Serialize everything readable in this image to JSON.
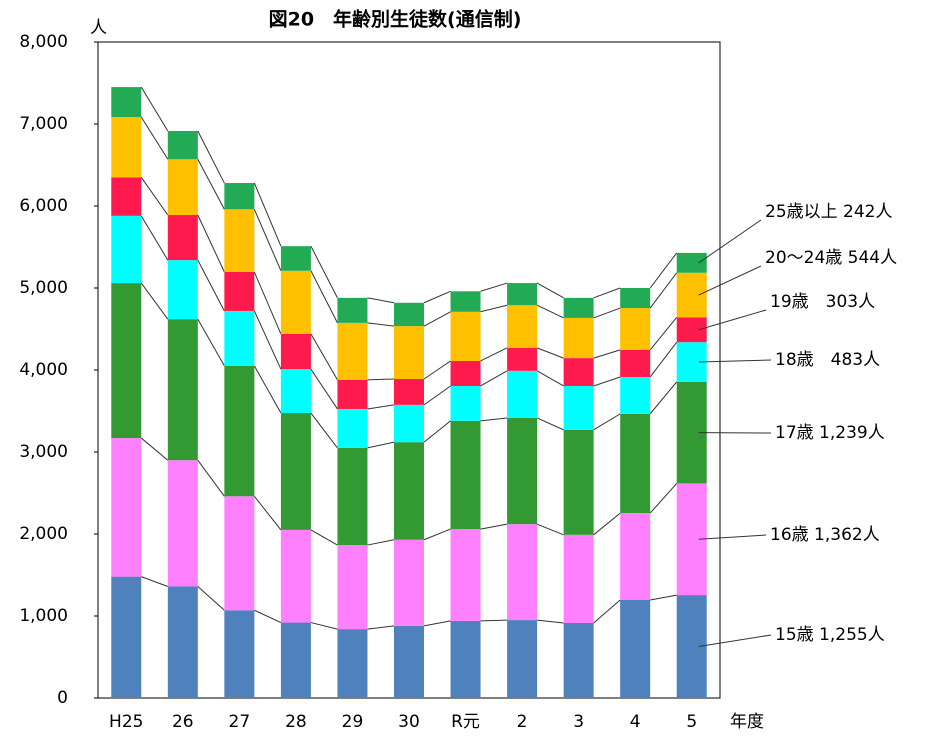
{
  "chart_data": {
    "type": "stacked_bar",
    "title": "図20　年齢別生徒数(通信制)",
    "y_unit": "人",
    "x_label": "年度",
    "categories": [
      "H25",
      "26",
      "27",
      "28",
      "29",
      "30",
      "R元",
      "2",
      "3",
      "4",
      "5"
    ],
    "series": [
      {
        "name": "15歳",
        "color": "#4f81bd",
        "values": [
          1480,
          1360,
          1070,
          920,
          840,
          880,
          940,
          950,
          915,
          1195,
          1255
        ]
      },
      {
        "name": "16歳",
        "color": "#ff80ff",
        "values": [
          1690,
          1540,
          1390,
          1130,
          1025,
          1050,
          1120,
          1170,
          1075,
          1060,
          1362
        ]
      },
      {
        "name": "17歳",
        "color": "#339933",
        "values": [
          1890,
          1720,
          1590,
          1425,
          1185,
          1190,
          1320,
          1295,
          1280,
          1210,
          1239
        ]
      },
      {
        "name": "18歳",
        "color": "#00ffff",
        "values": [
          820,
          720,
          670,
          535,
          475,
          455,
          425,
          575,
          535,
          450,
          483
        ]
      },
      {
        "name": "19歳",
        "color": "#ff1a4d",
        "values": [
          470,
          550,
          475,
          430,
          355,
          315,
          305,
          280,
          340,
          330,
          303
        ]
      },
      {
        "name": "20～24歳",
        "color": "#ffc000",
        "values": [
          735,
          680,
          765,
          770,
          695,
          645,
          600,
          520,
          490,
          510,
          544
        ]
      },
      {
        "name": "25歳以上",
        "color": "#22aa55",
        "values": [
          365,
          345,
          320,
          300,
          305,
          285,
          250,
          270,
          245,
          245,
          242
        ]
      }
    ],
    "annotations": [
      "15歳 1,255人",
      "16歳 1,362人",
      "17歳 1,239人",
      "18歳　483人",
      "19歳　303人",
      "20～24歳 544人",
      "25歳以上 242人"
    ],
    "ylim": [
      0,
      8000
    ],
    "yticks": [
      0,
      {
        "value": 1000,
        "label": "1,000"
      },
      {
        "value": 2000,
        "label": "2,000"
      },
      {
        "value": 3000,
        "label": "3,000"
      },
      {
        "value": 4000,
        "label": "4,000"
      },
      {
        "value": 5000,
        "label": "5,000"
      },
      {
        "value": 6000,
        "label": "6,000"
      },
      {
        "value": 7000,
        "label": "7,000"
      },
      {
        "value": 8000,
        "label": "8,000"
      }
    ]
  }
}
